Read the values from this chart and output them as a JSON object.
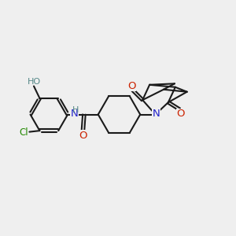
{
  "background_color": "#efefef",
  "bond_color": "#1a1a1a",
  "bond_width": 1.5,
  "N_color": "#2222cc",
  "O_color": "#cc2200",
  "Cl_color": "#228800",
  "H_color": "#558888",
  "figsize": [
    3.0,
    3.0
  ],
  "dpi": 100,
  "xlim": [
    0,
    10
  ],
  "ylim": [
    0,
    10
  ]
}
